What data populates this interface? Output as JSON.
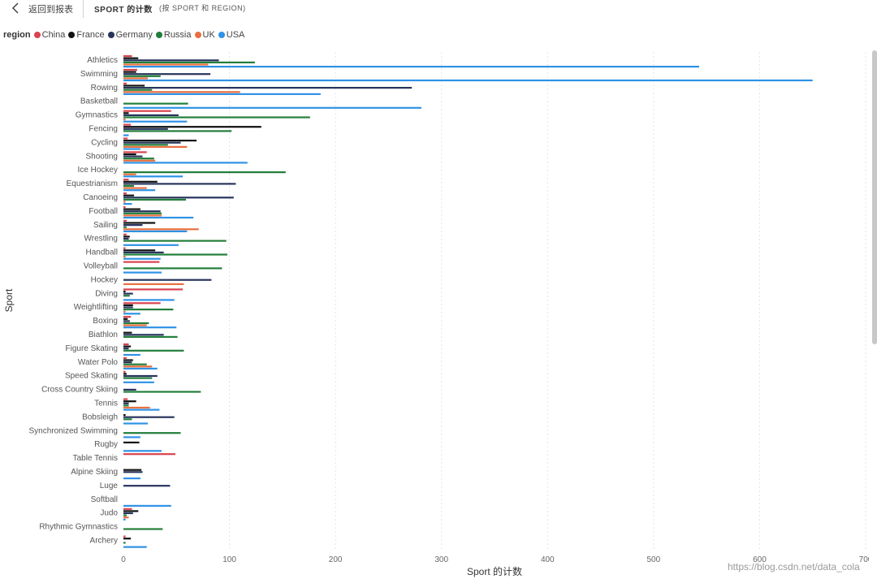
{
  "header": {
    "back_label": "返回到报表",
    "title": "SPORT 的计数",
    "subtitle": "(按 SPORT 和 REGION)"
  },
  "legend": {
    "title": "region",
    "items": [
      {
        "label": "China",
        "color": "#d9434f"
      },
      {
        "label": "France",
        "color": "#111111"
      },
      {
        "label": "Germany",
        "color": "#27355c"
      },
      {
        "label": "Russia",
        "color": "#237e3b"
      },
      {
        "label": "UK",
        "color": "#e8703f"
      },
      {
        "label": "USA",
        "color": "#2f92e6"
      }
    ]
  },
  "watermark": "https://blog.csdn.net/data_cola",
  "chart_data": {
    "type": "bar",
    "orientation": "horizontal",
    "xlabel": "Sport 的计数",
    "ylabel": "Sport",
    "xlim": [
      0,
      700
    ],
    "xticks": [
      0,
      100,
      200,
      300,
      400,
      500,
      600,
      700
    ],
    "grid": true,
    "legend_position": "top-left",
    "categories": [
      "Athletics",
      "Swimming",
      "Rowing",
      "Basketball",
      "Gymnastics",
      "Fencing",
      "Cycling",
      "Shooting",
      "Ice Hockey",
      "Equestrianism",
      "Canoeing",
      "Football",
      "Sailing",
      "Wrestling",
      "Handball",
      "Volleyball",
      "Hockey",
      "Diving",
      "Weightlifting",
      "Boxing",
      "Biathlon",
      "Figure Skating",
      "Water Polo",
      "Speed Skating",
      "Cross Country Skiing",
      "Tennis",
      "Bobsleigh",
      "Synchronized Swimming",
      "Rugby",
      "Table Tennis",
      "Alpine Skiing",
      "Luge",
      "Softball",
      "Judo",
      "Rhythmic Gymnastics",
      "Archery"
    ],
    "series": [
      {
        "name": "China",
        "values": [
          8,
          13,
          3,
          0,
          45,
          7,
          4,
          22,
          0,
          5,
          3,
          2,
          3,
          3,
          2,
          34,
          0,
          56,
          35,
          7,
          0,
          5,
          3,
          2,
          0,
          4,
          0,
          0,
          0,
          49,
          0,
          0,
          0,
          8,
          0,
          2
        ]
      },
      {
        "name": "France",
        "values": [
          14,
          12,
          20,
          0,
          5,
          130,
          69,
          12,
          0,
          32,
          10,
          16,
          30,
          6,
          30,
          0,
          0,
          2,
          9,
          4,
          8,
          7,
          9,
          3,
          0,
          12,
          2,
          0,
          15,
          0,
          17,
          0,
          0,
          14,
          0,
          7
        ]
      },
      {
        "name": "Germany",
        "values": [
          90,
          82,
          272,
          0,
          52,
          42,
          54,
          18,
          0,
          106,
          104,
          35,
          18,
          5,
          38,
          0,
          83,
          9,
          9,
          6,
          38,
          5,
          8,
          32,
          12,
          5,
          48,
          0,
          0,
          0,
          18,
          44,
          0,
          9,
          0,
          0
        ]
      },
      {
        "name": "Russia",
        "values": [
          124,
          35,
          27,
          61,
          176,
          102,
          42,
          29,
          153,
          10,
          59,
          36,
          3,
          97,
          98,
          93,
          0,
          6,
          47,
          24,
          51,
          57,
          22,
          27,
          73,
          5,
          8,
          54,
          0,
          0,
          0,
          0,
          0,
          3,
          37,
          2
        ]
      },
      {
        "name": "UK",
        "values": [
          80,
          23,
          110,
          0,
          2,
          0,
          60,
          30,
          12,
          22,
          2,
          36,
          71,
          0,
          2,
          0,
          57,
          0,
          2,
          22,
          0,
          0,
          27,
          0,
          0,
          25,
          0,
          0,
          0,
          0,
          0,
          0,
          0,
          5,
          0,
          0
        ]
      },
      {
        "name": "USA",
        "values": [
          543,
          650,
          186,
          281,
          60,
          5,
          16,
          117,
          56,
          30,
          8,
          66,
          60,
          52,
          35,
          36,
          0,
          48,
          16,
          50,
          0,
          16,
          32,
          29,
          0,
          34,
          23,
          16,
          36,
          0,
          16,
          0,
          45,
          2,
          0,
          22
        ]
      }
    ]
  }
}
